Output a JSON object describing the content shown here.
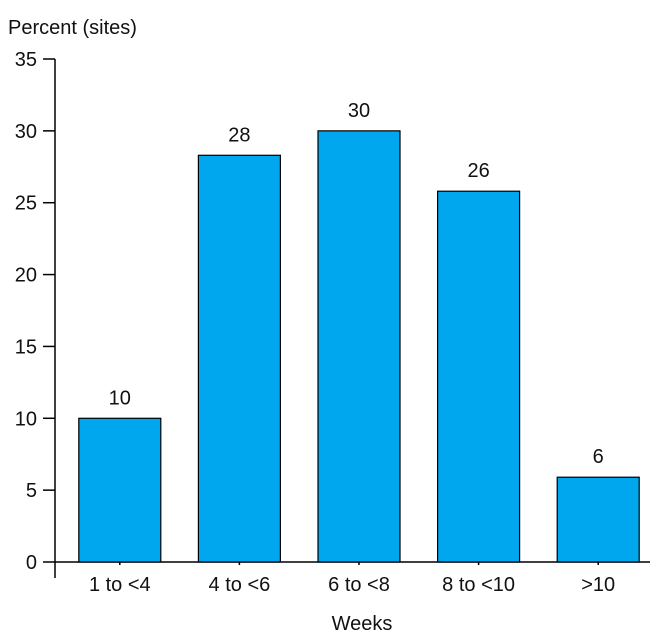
{
  "chart_data": {
    "type": "bar",
    "title": "",
    "ylabel": "Percent (sites)",
    "xlabel": "Weeks",
    "categories": [
      "1 to <4",
      "4 to <6",
      "6 to <8",
      "8 to <10",
      ">10"
    ],
    "values": [
      10,
      28.3,
      30,
      25.8,
      5.9
    ],
    "data_labels": [
      "10",
      "28",
      "30",
      "26",
      "6"
    ],
    "ylim": [
      0,
      35
    ],
    "yticks": [
      0,
      5,
      10,
      15,
      20,
      25,
      30,
      35
    ],
    "grid": false,
    "legend": "none",
    "bar_color": "#00A6EE"
  }
}
